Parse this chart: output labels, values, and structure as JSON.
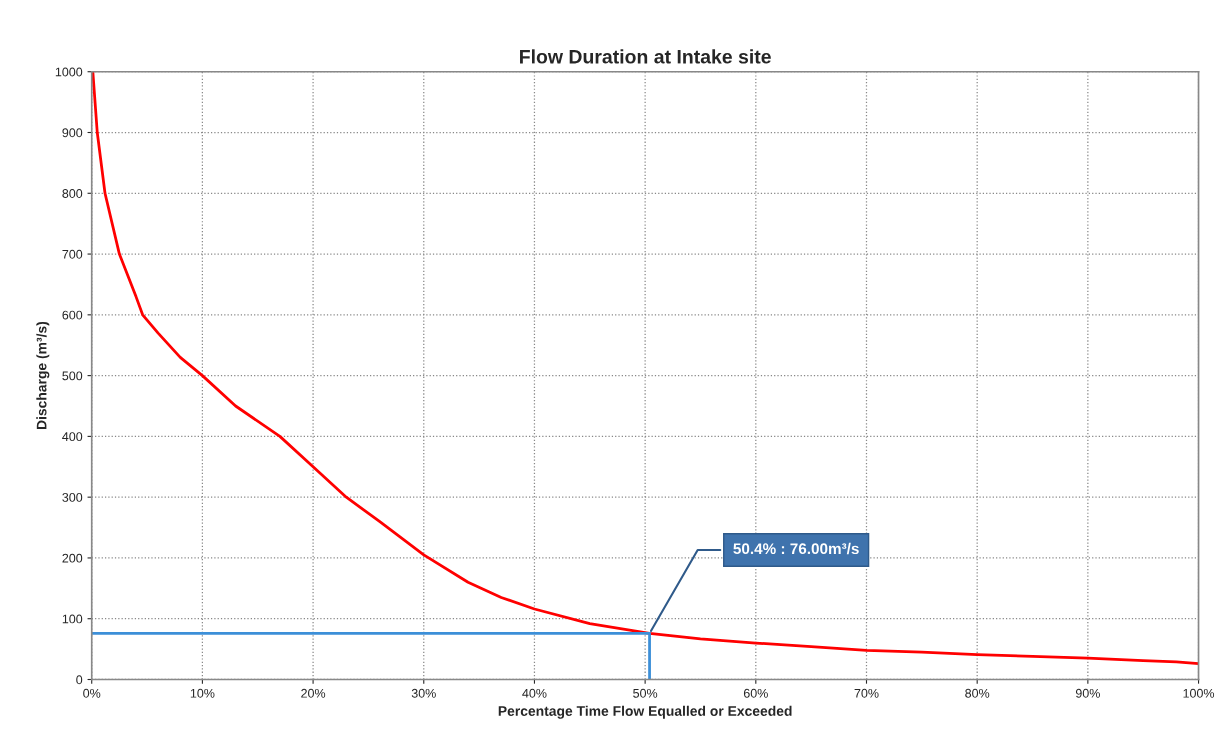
{
  "chart_data": {
    "type": "line",
    "title": "Flow Duration at Intake site",
    "xlabel": "Percentage Time Flow Equalled or Exceeded",
    "ylabel": "Discharge (m³/s)",
    "series": [
      {
        "color": "#ff0000",
        "x": [
          0.1,
          0.5,
          1.2,
          2.5,
          4,
          4.6,
          6,
          8,
          10,
          13,
          17,
          20,
          23,
          26,
          30,
          34,
          37,
          40,
          45,
          50.4,
          55,
          60,
          65,
          70,
          75,
          80,
          85,
          90,
          95,
          98,
          100
        ],
        "values": [
          1000,
          900,
          800,
          700,
          630,
          600,
          570,
          530,
          500,
          450,
          400,
          350,
          300,
          260,
          205,
          160,
          135,
          116,
          92,
          76,
          67,
          60,
          54,
          48,
          45,
          41,
          38,
          35,
          31,
          29,
          26
        ]
      },
      {
        "color": "#3c8fd8",
        "x": [
          0,
          50.4,
          50.4
        ],
        "values": [
          76,
          76,
          0
        ]
      }
    ],
    "annotations": [
      {
        "text": "50.4% : 76.00m³/s",
        "x": 50.4,
        "y": 76
      }
    ],
    "xlim": [
      0,
      100
    ],
    "ylim": [
      0,
      1000
    ],
    "xticks": [
      {
        "value": 0,
        "label": "0%"
      },
      {
        "value": 10,
        "label": "10%"
      },
      {
        "value": 20,
        "label": "20%"
      },
      {
        "value": 30,
        "label": "30%"
      },
      {
        "value": 40,
        "label": "40%"
      },
      {
        "value": 50,
        "label": "50%"
      },
      {
        "value": 60,
        "label": "60%"
      },
      {
        "value": 70,
        "label": "70%"
      },
      {
        "value": 80,
        "label": "80%"
      },
      {
        "value": 90,
        "label": "90%"
      },
      {
        "value": 100,
        "label": "100%"
      }
    ],
    "yticks": [
      0,
      100,
      200,
      300,
      400,
      500,
      600,
      700,
      800,
      900,
      1000
    ],
    "grid": true,
    "line_style": "solid"
  }
}
